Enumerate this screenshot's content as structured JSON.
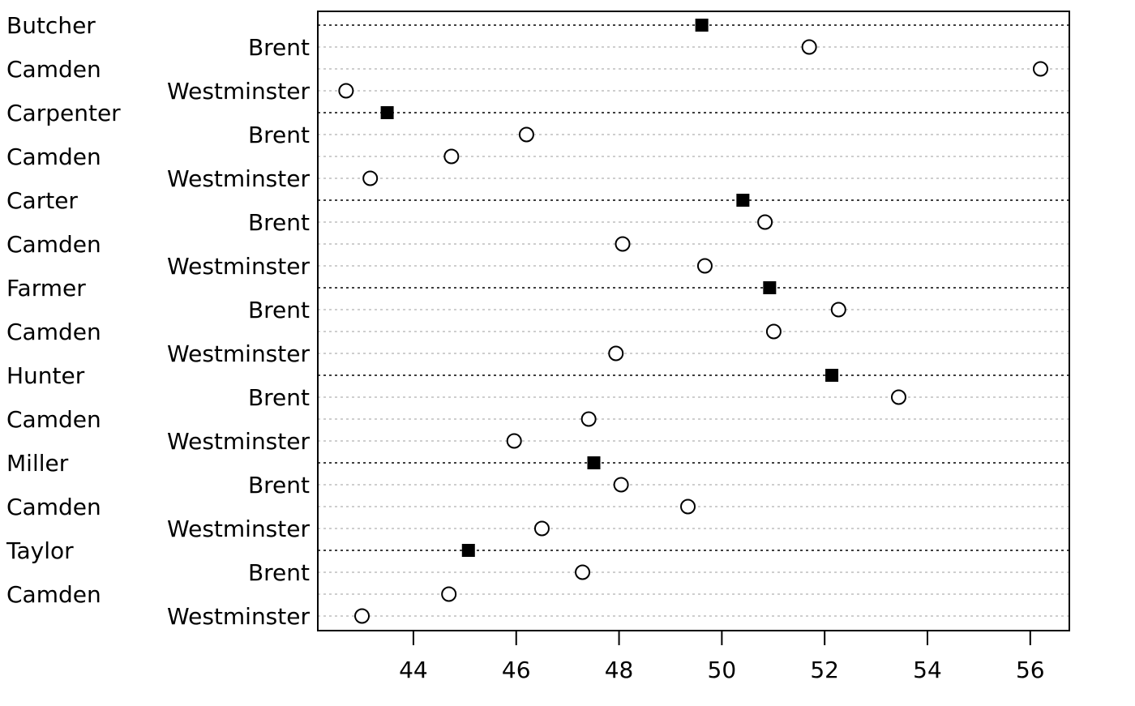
{
  "chart_data": {
    "type": "dotchart",
    "title": "",
    "xlabel": "",
    "ylabel": "",
    "xlim": [
      42.14,
      56.76
    ],
    "x_ticks": [
      44,
      46,
      48,
      50,
      52,
      54,
      56
    ],
    "grid": true,
    "legend": "none",
    "colors": {
      "group_marker": "#000000",
      "item_marker_fill": "#ffffff",
      "item_marker_stroke": "#000000",
      "group_line": "#000000",
      "item_line": "#bebebe"
    },
    "groups": [
      {
        "label": "Butcher",
        "value": 49.61,
        "items": [
          {
            "label": "Brent",
            "value": 51.7
          },
          {
            "label": "Camden",
            "value": 56.2
          },
          {
            "label": "Westminster",
            "value": 42.69
          }
        ]
      },
      {
        "label": "Carpenter",
        "value": 43.49,
        "items": [
          {
            "label": "Brent",
            "value": 46.2
          },
          {
            "label": "Camden",
            "value": 44.74
          },
          {
            "label": "Westminster",
            "value": 43.16
          }
        ]
      },
      {
        "label": "Carter",
        "value": 50.41,
        "items": [
          {
            "label": "Brent",
            "value": 50.84
          },
          {
            "label": "Camden",
            "value": 48.07
          },
          {
            "label": "Westminster",
            "value": 49.67
          }
        ]
      },
      {
        "label": "Farmer",
        "value": 50.93,
        "items": [
          {
            "label": "Brent",
            "value": 52.27
          },
          {
            "label": "Camden",
            "value": 51.01
          },
          {
            "label": "Westminster",
            "value": 47.94
          }
        ]
      },
      {
        "label": "Hunter",
        "value": 52.14,
        "items": [
          {
            "label": "Brent",
            "value": 53.44
          },
          {
            "label": "Camden",
            "value": 47.41
          },
          {
            "label": "Westminster",
            "value": 45.96
          }
        ]
      },
      {
        "label": "Miller",
        "value": 47.51,
        "items": [
          {
            "label": "Brent",
            "value": 48.04
          },
          {
            "label": "Camden",
            "value": 49.34
          },
          {
            "label": "Westminster",
            "value": 46.5
          }
        ]
      },
      {
        "label": "Taylor",
        "value": 45.07,
        "items": [
          {
            "label": "Brent",
            "value": 47.29
          },
          {
            "label": "Camden",
            "value": 44.69
          },
          {
            "label": "Westminster",
            "value": 43.0
          }
        ]
      }
    ]
  }
}
